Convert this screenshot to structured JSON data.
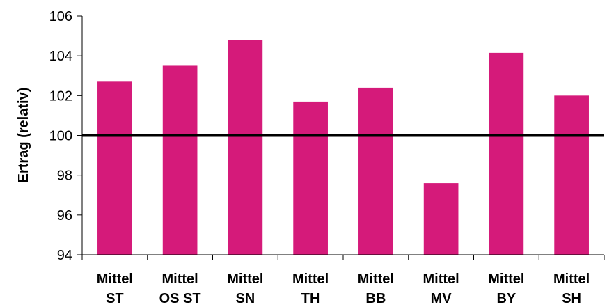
{
  "chart_data": {
    "type": "bar",
    "categories": [
      [
        "Mittel",
        "ST"
      ],
      [
        "Mittel",
        "OS ST"
      ],
      [
        "Mittel",
        "SN"
      ],
      [
        "Mittel",
        "TH"
      ],
      [
        "Mittel",
        "BB"
      ],
      [
        "Mittel",
        "MV"
      ],
      [
        "Mittel",
        "BY"
      ],
      [
        "Mittel",
        "SH"
      ]
    ],
    "values": [
      102.7,
      103.5,
      104.8,
      101.7,
      102.4,
      97.6,
      104.15,
      102.0
    ],
    "title": "",
    "xlabel": "",
    "ylabel": "Ertrag (relativ)",
    "ylim": [
      94,
      106
    ],
    "yticks": [
      94,
      96,
      98,
      100,
      102,
      104,
      106
    ],
    "reference_line": 100,
    "grid": false,
    "legend": "none",
    "bar_color": "#d51a7a",
    "reference_line_color": "#000000"
  }
}
